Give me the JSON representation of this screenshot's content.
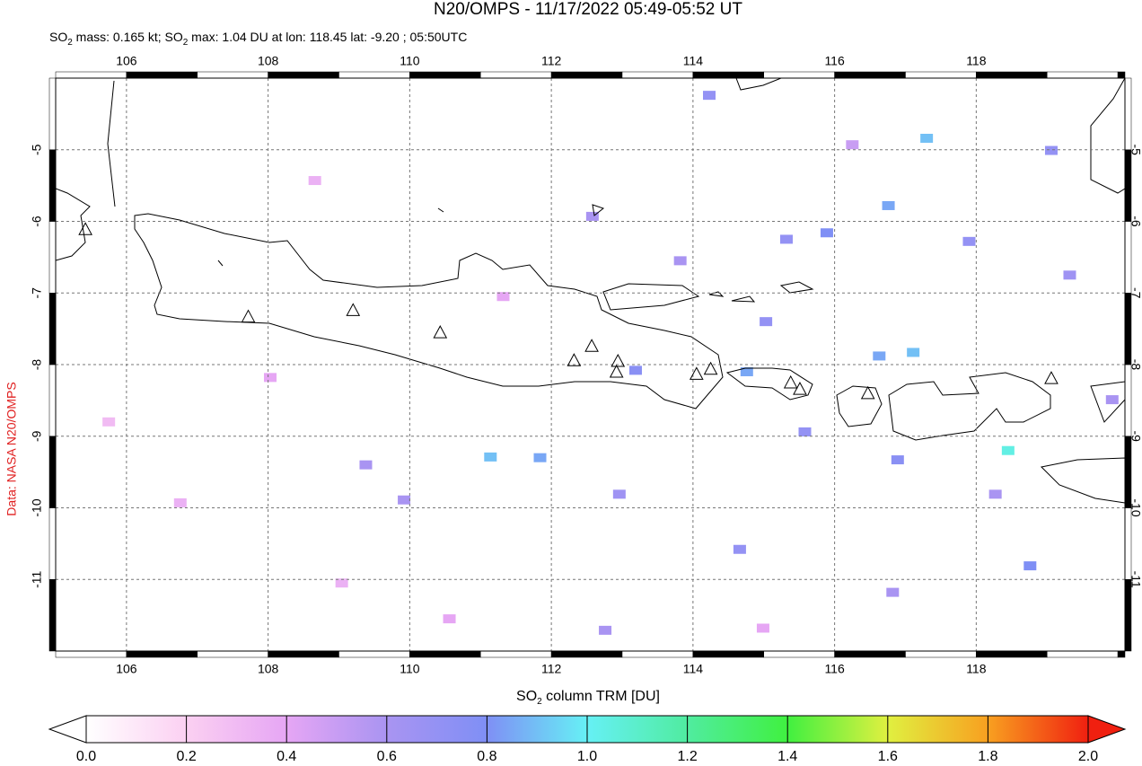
{
  "chart_data": {
    "type": "map",
    "title": "N20/OMPS - 11/17/2022 05:49-05:52 UT",
    "subtitle": [
      "SO",
      "2",
      " mass: 0.165 kt; SO",
      "2",
      " max: 1.04 DU at lon: 118.45 lat: -9.20 ; 05:50UTC"
    ],
    "credit": "Data: NASA N20/OMPS",
    "xlim": [
      105,
      120.1
    ],
    "ylim": [
      -12,
      -4
    ],
    "xticks": [
      106,
      108,
      110,
      112,
      114,
      116,
      118
    ],
    "yticks": [
      -5,
      -6,
      -7,
      -8,
      -9,
      -10,
      -11
    ],
    "grid": true,
    "cells": {
      "lon": [
        114.23,
        117.3,
        119.06,
        116.76,
        115.32,
        115.89,
        117.9,
        119.32,
        115.03,
        116.63,
        117.11,
        113.19,
        114.76,
        115.58,
        118.45,
        111.14,
        111.84,
        109.38,
        112.96,
        109.92,
        118.27,
        118.76,
        114.66,
        116.82,
        112.76,
        113.82,
        112.58,
        116.89,
        108.03,
        106.76,
        109.04,
        111.32,
        108.66,
        116.25,
        114.99,
        105.75,
        110.56,
        119.92
      ],
      "lat": [
        -4.24,
        -4.84,
        -5.01,
        -5.78,
        -6.25,
        -6.16,
        -6.28,
        -6.75,
        -7.4,
        -7.88,
        -7.83,
        -8.08,
        -8.1,
        -8.94,
        -9.2,
        -9.29,
        -9.3,
        -9.4,
        -9.81,
        -9.89,
        -9.81,
        -10.81,
        -10.58,
        -11.18,
        -11.71,
        -6.55,
        -5.93,
        -9.33,
        -8.18,
        -9.93,
        -11.05,
        -7.05,
        -5.43,
        -4.93,
        -11.68,
        -8.8,
        -11.55,
        -8.49
      ],
      "values": [
        0.7,
        0.9,
        0.7,
        0.85,
        0.7,
        0.8,
        0.7,
        0.65,
        0.7,
        0.85,
        0.9,
        0.75,
        0.85,
        0.7,
        1.04,
        0.9,
        0.85,
        0.6,
        0.65,
        0.6,
        0.6,
        0.8,
        0.7,
        0.6,
        0.6,
        0.6,
        0.6,
        0.75,
        0.4,
        0.35,
        0.35,
        0.4,
        0.35,
        0.5,
        0.4,
        0.3,
        0.4,
        0.6
      ]
    },
    "volcanoes": {
      "lon": [
        105.42,
        107.72,
        109.2,
        110.43,
        112.32,
        112.57,
        112.94,
        112.92,
        114.05,
        114.25,
        115.38,
        115.51,
        116.47,
        119.06
      ],
      "lat": [
        -6.11,
        -7.33,
        -7.24,
        -7.55,
        -7.94,
        -7.74,
        -7.95,
        -8.1,
        -8.13,
        -8.06,
        -8.25,
        -8.34,
        -8.4,
        -8.19
      ]
    },
    "colorbar": {
      "label": [
        "SO",
        "2",
        " column TRM [DU]"
      ],
      "lim": [
        0,
        2
      ],
      "ticks": [
        {
          "value": 0,
          "label": "0.0"
        },
        {
          "value": 0.2,
          "label": "0.2"
        },
        {
          "value": 0.4,
          "label": "0.4"
        },
        {
          "value": 0.6,
          "label": "0.6"
        },
        {
          "value": 0.8,
          "label": "0.8"
        },
        {
          "value": 1,
          "label": "1.0"
        },
        {
          "value": 1.2,
          "label": "1.2"
        },
        {
          "value": 1.4,
          "label": "1.4"
        },
        {
          "value": 1.6,
          "label": "1.6"
        },
        {
          "value": 1.8,
          "label": "1.8"
        },
        {
          "value": 2,
          "label": "2.0"
        }
      ],
      "colors": [
        "#ffffff",
        "#fbd0f2",
        "#e6a6f4",
        "#a994f2",
        "#7f8ff5",
        "#66f0f5",
        "#50eca0",
        "#40f040",
        "#e0f040",
        "#f8a020",
        "#f02010"
      ]
    }
  }
}
